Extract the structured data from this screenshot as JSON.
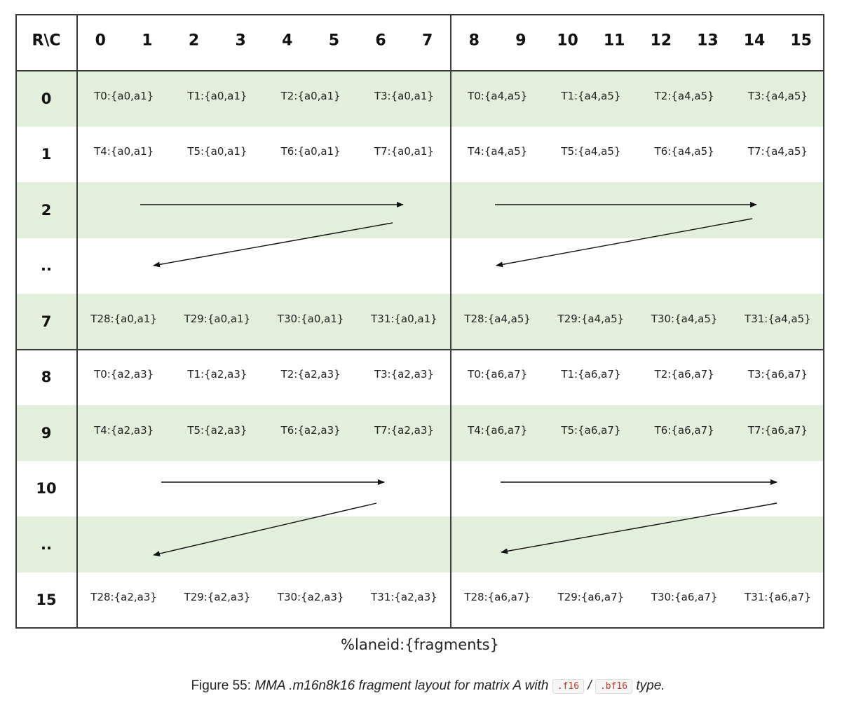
{
  "corner_label": "R\\C",
  "column_headers": [
    "0",
    "1",
    "2",
    "3",
    "4",
    "5",
    "6",
    "7",
    "8",
    "9",
    "10",
    "11",
    "12",
    "13",
    "14",
    "15"
  ],
  "rows": [
    {
      "label": "0",
      "shade": "green",
      "cells": [
        "T0:{a0,a1}",
        "T1:{a0,a1}",
        "T2:{a0,a1}",
        "T3:{a0,a1}",
        "T0:{a4,a5}",
        "T1:{a4,a5}",
        "T2:{a4,a5}",
        "T3:{a4,a5}"
      ]
    },
    {
      "label": "1",
      "shade": "white",
      "cells": [
        "T4:{a0,a1}",
        "T5:{a0,a1}",
        "T6:{a0,a1}",
        "T7:{a0,a1}",
        "T4:{a4,a5}",
        "T5:{a4,a5}",
        "T6:{a4,a5}",
        "T7:{a4,a5}"
      ]
    },
    {
      "label": "2",
      "shade": "green",
      "cells": []
    },
    {
      "label": "..",
      "shade": "white",
      "cells": []
    },
    {
      "label": "7",
      "shade": "green",
      "cells": [
        "T28:{a0,a1}",
        "T29:{a0,a1}",
        "T30:{a0,a1}",
        "T31:{a0,a1}",
        "T28:{a4,a5}",
        "T29:{a4,a5}",
        "T30:{a4,a5}",
        "T31:{a4,a5}"
      ]
    },
    {
      "label": "8",
      "shade": "white",
      "cells": [
        "T0:{a2,a3}",
        "T1:{a2,a3}",
        "T2:{a2,a3}",
        "T3:{a2,a3}",
        "T0:{a6,a7}",
        "T1:{a6,a7}",
        "T2:{a6,a7}",
        "T3:{a6,a7}"
      ]
    },
    {
      "label": "9",
      "shade": "green",
      "cells": [
        "T4:{a2,a3}",
        "T5:{a2,a3}",
        "T6:{a2,a3}",
        "T7:{a2,a3}",
        "T4:{a6,a7}",
        "T5:{a6,a7}",
        "T6:{a6,a7}",
        "T7:{a6,a7}"
      ]
    },
    {
      "label": "10",
      "shade": "white",
      "cells": []
    },
    {
      "label": "..",
      "shade": "green",
      "cells": []
    },
    {
      "label": "15",
      "shade": "white",
      "cells": [
        "T28:{a2,a3}",
        "T29:{a2,a3}",
        "T30:{a2,a3}",
        "T31:{a2,a3}",
        "T28:{a6,a7}",
        "T29:{a6,a7}",
        "T30:{a6,a7}",
        "T31:{a6,a7}"
      ]
    }
  ],
  "legend_text": "%laneid:{fragments}",
  "figure_caption": {
    "prefix": "Figure 55: ",
    "italic_text": "MMA .m16n8k16 fragment layout for matrix A with",
    "code_1": ".f16",
    "separator": "/",
    "code_2": ".bf16",
    "suffix": "type."
  },
  "colors": {
    "band_green": "#e2efda",
    "grid_line": "#3a3a3a",
    "code_text": "#c0392b"
  }
}
